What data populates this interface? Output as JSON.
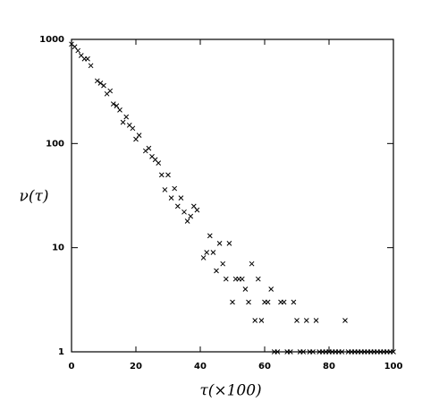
{
  "chart_data": {
    "type": "scatter",
    "marker": "x",
    "color": "#000000",
    "x_label": "τ(×100)",
    "y_label": "ν(τ)",
    "xlim": [
      0,
      100
    ],
    "ylim": [
      1,
      1000
    ],
    "log_y": true,
    "xticks": [
      0,
      20,
      40,
      60,
      80,
      100
    ],
    "yticks": [
      1,
      10,
      100,
      1000
    ],
    "x": [
      0,
      1,
      2,
      3,
      4,
      5,
      6,
      8,
      9,
      10,
      11,
      12,
      13,
      14,
      15,
      16,
      17,
      18,
      19,
      20,
      21,
      23,
      24,
      25,
      26,
      27,
      28,
      29,
      30,
      31,
      32,
      33,
      34,
      35,
      36,
      37,
      38,
      39,
      41,
      42,
      43,
      44,
      45,
      46,
      47,
      48,
      49,
      50,
      51,
      52,
      53,
      54,
      55,
      56,
      57,
      58,
      59,
      60,
      61,
      62,
      65,
      66,
      69,
      70,
      73,
      76,
      85,
      63,
      64,
      67,
      68,
      71,
      72,
      74,
      75,
      77,
      78,
      79,
      80,
      81,
      82,
      83,
      84,
      86,
      87,
      88,
      89,
      90,
      91,
      92,
      93,
      94,
      95,
      96,
      97,
      98,
      99,
      100
    ],
    "values": [
      900,
      850,
      780,
      700,
      650,
      650,
      560,
      400,
      380,
      360,
      300,
      320,
      240,
      230,
      210,
      160,
      180,
      150,
      140,
      110,
      120,
      85,
      90,
      75,
      70,
      65,
      50,
      36,
      50,
      30,
      37,
      25,
      30,
      22,
      18,
      20,
      25,
      23,
      8,
      9,
      13,
      9,
      6,
      11,
      7,
      5,
      11,
      3,
      5,
      5,
      5,
      4,
      3,
      7,
      2,
      5,
      2,
      3,
      3,
      4,
      3,
      3,
      3,
      2,
      2,
      2,
      2,
      1,
      1,
      1,
      1,
      1,
      1,
      1,
      1,
      1,
      1,
      1,
      1,
      1,
      1,
      1,
      1,
      1,
      1,
      1,
      1,
      1,
      1,
      1,
      1,
      1,
      1,
      1,
      1,
      1,
      1,
      1
    ]
  }
}
